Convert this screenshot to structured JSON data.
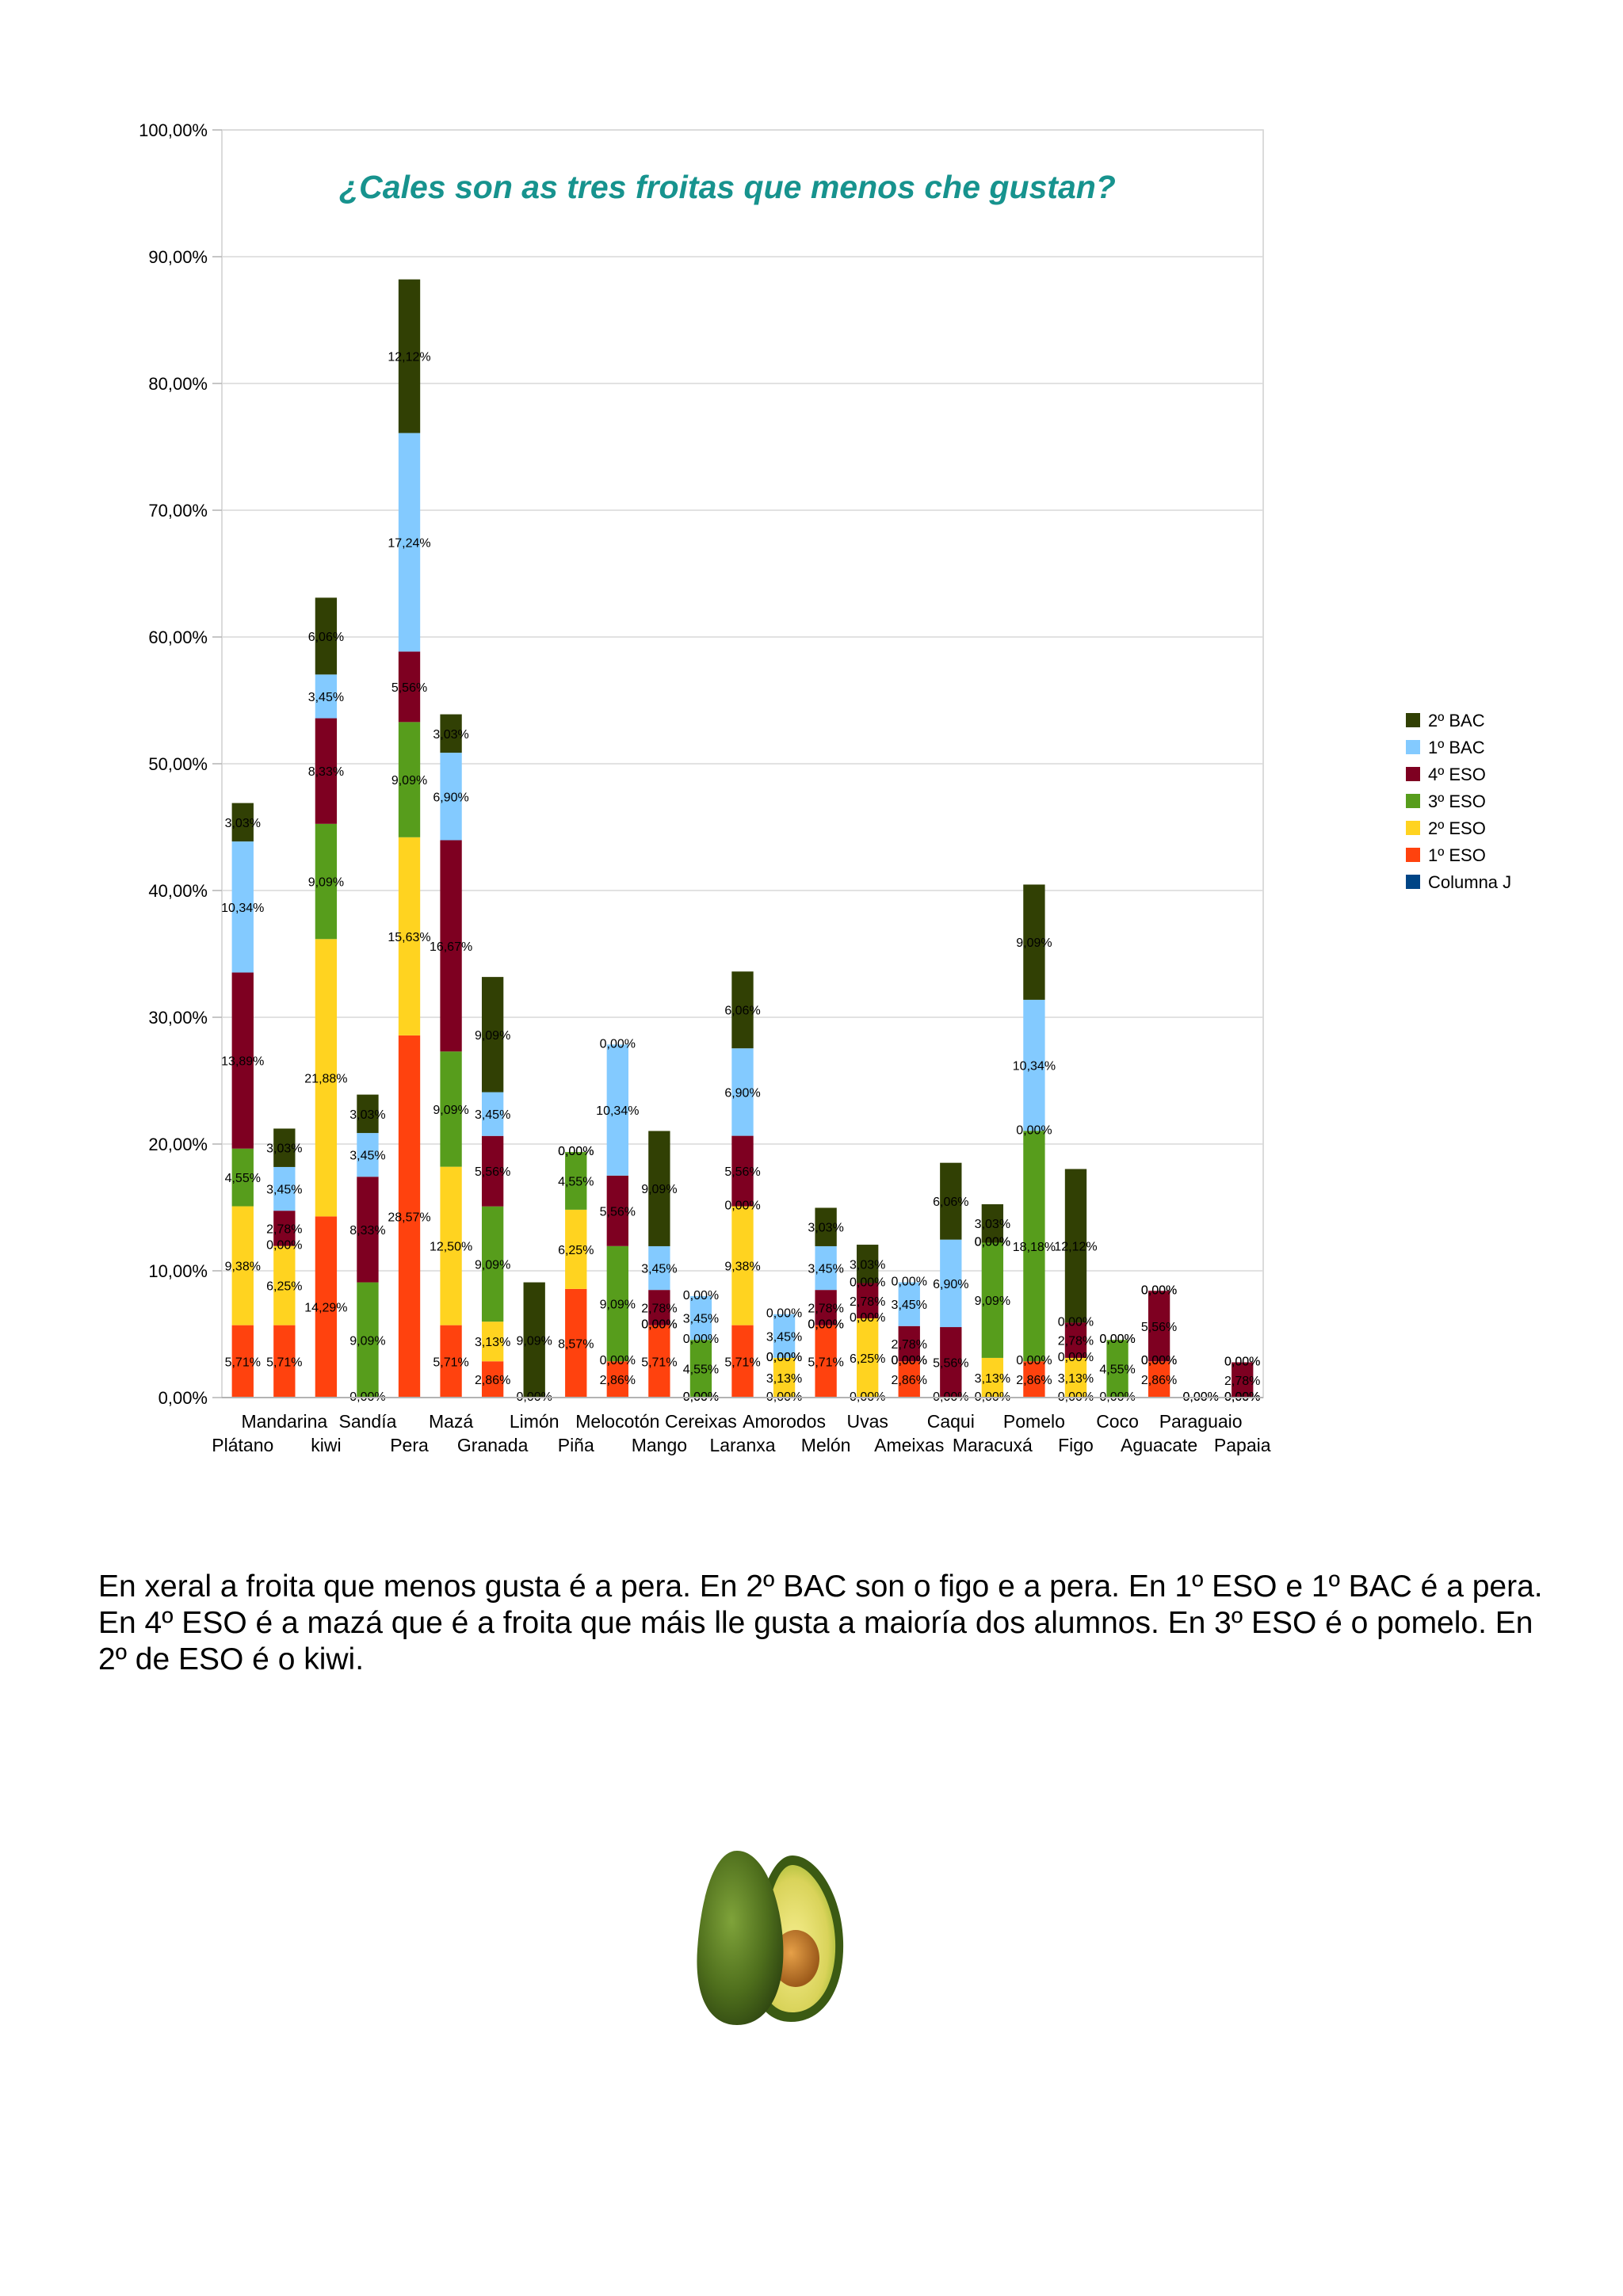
{
  "chart_data": {
    "type": "bar",
    "stacked": true,
    "title": "¿Cales son as tres froitas que menos che gustan?",
    "ylim": [
      0,
      100
    ],
    "yticks": [
      "0,00%",
      "10,00%",
      "20,00%",
      "30,00%",
      "40,00%",
      "50,00%",
      "60,00%",
      "70,00%",
      "80,00%",
      "90,00%",
      "100,00%"
    ],
    "grid": true,
    "legend_position": "right",
    "categories": [
      "Plátano",
      "Mandarina",
      "kiwi",
      "Sandía",
      "Pera",
      "Mazá",
      "Granada",
      "Limón",
      "Piña",
      "Melocotón",
      "Mango",
      "Cereixas",
      "Laranxa",
      "Amorodos",
      "Melón",
      "Uvas",
      "Ameixas",
      "Caqui",
      "Maracuxá",
      "Pomelo",
      "Figo",
      "Coco",
      "Aguacate",
      "Paraguaio",
      "Papaia"
    ],
    "series": [
      {
        "name": "1º ESO",
        "color": "#ff420e",
        "values": [
          5.71,
          5.71,
          14.29,
          0,
          28.57,
          5.71,
          2.86,
          0,
          8.57,
          2.86,
          5.71,
          0,
          5.71,
          0,
          5.71,
          0,
          2.86,
          0,
          0,
          2.86,
          0,
          0,
          2.86,
          0,
          0
        ],
        "labels": [
          "5,71%",
          "5,71%",
          "14,29%",
          "0,00%",
          "28,57%",
          "5,71%",
          "2,86%",
          "0,00%",
          "8,57%",
          "2,86%",
          "5,71%",
          "0,00%",
          "5,71%",
          "0,00%",
          "5,71%",
          "0,00%",
          "2,86%",
          "0,00%",
          "0,00%",
          "2,86%",
          "0,00%",
          "0,00%",
          "2,86%",
          "0,00%",
          "0,00%"
        ]
      },
      {
        "name": "2º ESO",
        "color": "#ffd320",
        "values": [
          9.38,
          6.25,
          21.88,
          0,
          15.63,
          12.5,
          3.13,
          0,
          6.25,
          0,
          0,
          0,
          9.38,
          3.13,
          0,
          6.25,
          0,
          0,
          3.13,
          0,
          3.13,
          0,
          0,
          0,
          0
        ],
        "labels": [
          "9,38%",
          "6,25%",
          "21,88%",
          "",
          "15,63%",
          "12,50%",
          "3,13%",
          "",
          "6,25%",
          "0,00%",
          "0,00%",
          "0,00%",
          "9,38%",
          "3,13%",
          "0,00%",
          "6,25%",
          "0,00%",
          "",
          "3,13%",
          "0,00%",
          "3,13%",
          "",
          "0,00%",
          "",
          "0,00%"
        ]
      },
      {
        "name": "3º ESO",
        "color": "#579d1c",
        "values": [
          4.55,
          0,
          9.09,
          9.09,
          9.09,
          9.09,
          9.09,
          0,
          4.55,
          9.09,
          0,
          4.55,
          0,
          0,
          0,
          0,
          0,
          0,
          9.09,
          18.18,
          0,
          4.55,
          0,
          0,
          0
        ],
        "labels": [
          "4,55%",
          "0,00%",
          "9,09%",
          "9,09%",
          "9,09%",
          "9,09%",
          "9,09%",
          "",
          "4,55%",
          "9,09%",
          "0,00%",
          "4,55%",
          "0,00%",
          "0,00%",
          "0,00%",
          "0,00%",
          "0,00%",
          "",
          "9,09%",
          "18,18%",
          "0,00%",
          "4,55%",
          "0,00%",
          "",
          "0,00%"
        ]
      },
      {
        "name": "4º ESO",
        "color": "#7e0021",
        "values": [
          13.89,
          2.78,
          8.33,
          8.33,
          5.56,
          16.67,
          5.56,
          0,
          0,
          5.56,
          2.78,
          0,
          5.56,
          0,
          2.78,
          2.78,
          2.78,
          5.56,
          0,
          0,
          2.78,
          0,
          5.56,
          0,
          2.78
        ],
        "labels": [
          "13,89%",
          "2,78%",
          "8,33%",
          "8,33%",
          "5,56%",
          "16,67%",
          "5,56%",
          "",
          "",
          "5,56%",
          "2,78%",
          "0,00%",
          "5,56%",
          "0,00%",
          "2,78%",
          "2,78%",
          "2,78%",
          "5,56%",
          "0,00%",
          "0,00%",
          "2,78%",
          "",
          "5,56%",
          "",
          "2,78%"
        ]
      },
      {
        "name": "1º BAC",
        "color": "#83caff",
        "values": [
          10.34,
          3.45,
          3.45,
          3.45,
          17.24,
          6.9,
          3.45,
          0,
          0,
          10.34,
          3.45,
          3.45,
          6.9,
          3.45,
          3.45,
          0,
          3.45,
          6.9,
          0,
          10.34,
          0,
          0,
          0,
          0,
          0
        ],
        "labels": [
          "10,34%",
          "3,45%",
          "3,45%",
          "3,45%",
          "17,24%",
          "6,90%",
          "3,45%",
          "",
          "0,00%",
          "10,34%",
          "3,45%",
          "3,45%",
          "6,90%",
          "3,45%",
          "3,45%",
          "0,00%",
          "3,45%",
          "6,90%",
          "0,00%",
          "10,34%",
          "0,00%",
          "0,00%",
          "0,00%",
          "",
          "0,00%"
        ]
      },
      {
        "name": "2º BAC",
        "color": "#314004",
        "values": [
          3.03,
          3.03,
          6.06,
          3.03,
          12.12,
          3.03,
          9.09,
          9.09,
          0,
          0,
          9.09,
          0,
          6.06,
          0,
          3.03,
          3.03,
          0,
          6.06,
          3.03,
          9.09,
          12.12,
          0,
          0,
          0,
          0
        ],
        "labels": [
          "3,03%",
          "3,03%",
          "6,06%",
          "3,03%",
          "12,12%",
          "3,03%",
          "9,09%",
          "9,09%",
          "0,00%",
          "0,00%",
          "9,09%",
          "0,00%",
          "6,06%",
          "0,00%",
          "3,03%",
          "3,03%",
          "0,00%",
          "6,06%",
          "3,03%",
          "9,09%",
          "12,12%",
          "0,00%",
          "0,00%",
          "0,00%",
          "0,00%"
        ]
      },
      {
        "name": "Columna J",
        "color": "#004586",
        "values": [
          0,
          0,
          0,
          0,
          0,
          0,
          0,
          0,
          0,
          0,
          0,
          0,
          0,
          0,
          0,
          0,
          0,
          0,
          0,
          0,
          0,
          0,
          0,
          0,
          0
        ],
        "labels": []
      }
    ]
  },
  "caption": "En xeral a froita que menos gusta é a pera. En 2º BAC son o figo e a pera. En 1º  ESO e 1º BAC é a pera. En 4º ESO  é a mazá que é a froita que máis lle gusta a maioría dos alumnos. En 3º ESO  é o pomelo. En 2º de ESO  é o kiwi.",
  "image": {
    "icon": "avocado-icon"
  }
}
